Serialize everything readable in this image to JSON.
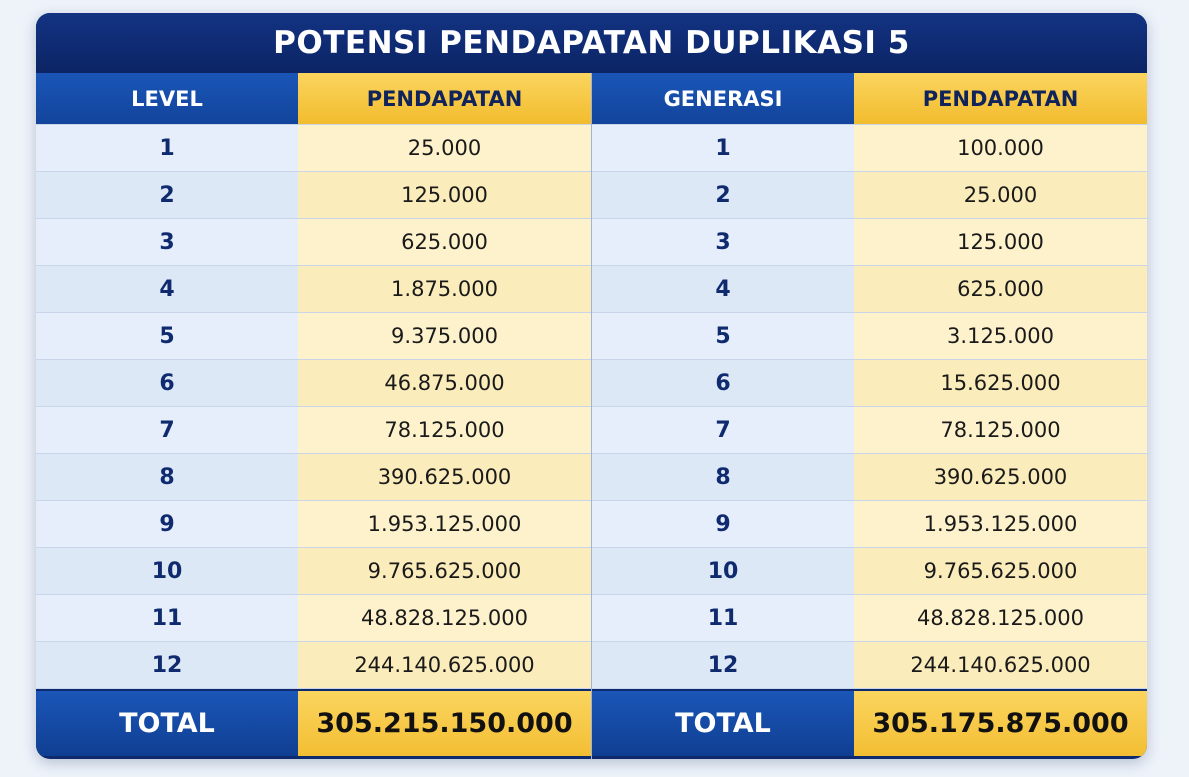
{
  "title": "POTENSI PENDAPATAN DUPLIKASI 5",
  "left_table": {
    "headers": [
      "LEVEL",
      "PENDAPATAN"
    ],
    "rows": [
      [
        "1",
        "25.000"
      ],
      [
        "2",
        "125.000"
      ],
      [
        "3",
        "625.000"
      ],
      [
        "4",
        "1.875.000"
      ],
      [
        "5",
        "9.375.000"
      ],
      [
        "6",
        "46.875.000"
      ],
      [
        "7",
        "78.125.000"
      ],
      [
        "8",
        "390.625.000"
      ],
      [
        "9",
        "1.953.125.000"
      ],
      [
        "10",
        "9.765.625.000"
      ],
      [
        "11",
        "48.828.125.000"
      ],
      [
        "12",
        "244.140.625.000"
      ]
    ],
    "total_label": "TOTAL",
    "total_value": "305.215.150.000"
  },
  "right_table": {
    "headers": [
      "GENERASI",
      "PENDAPATAN"
    ],
    "rows": [
      [
        "1",
        "100.000"
      ],
      [
        "2",
        "25.000"
      ],
      [
        "3",
        "125.000"
      ],
      [
        "4",
        "625.000"
      ],
      [
        "5",
        "3.125.000"
      ],
      [
        "6",
        "15.625.000"
      ],
      [
        "7",
        "78.125.000"
      ],
      [
        "8",
        "390.625.000"
      ],
      [
        "9",
        "1.953.125.000"
      ],
      [
        "10",
        "9.765.625.000"
      ],
      [
        "11",
        "48.828.125.000"
      ],
      [
        "12",
        "244.140.625.000"
      ]
    ],
    "total_label": "TOTAL",
    "total_value": "305.175.875.000"
  },
  "colors": {
    "navy": "#0d2a6e",
    "header_blue": "#1a56b8",
    "gold": "#f2bc2e",
    "row_blue": "#e5eefa",
    "row_cream": "#fdf2cc"
  }
}
